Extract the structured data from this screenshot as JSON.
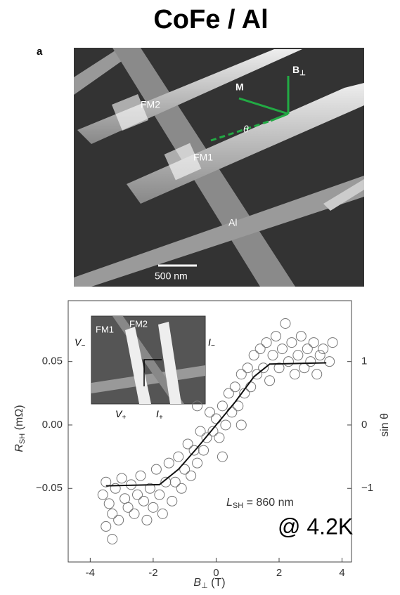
{
  "title": "CoFe / Al",
  "panel_label": "a",
  "image": {
    "labels": {
      "fm2": "FM2",
      "m": "M",
      "b_symbol": "B",
      "b_sub": "⊥",
      "theta": "θ",
      "fm1": "FM1",
      "al": "Al",
      "scale": "500 nm"
    }
  },
  "chart_data": {
    "type": "scatter",
    "x_label": {
      "symbol": "B",
      "sub": "⊥",
      "unit": " (T)"
    },
    "y_label": {
      "symbol": "R",
      "sub": "SH",
      "unit": " (mΩ)"
    },
    "y2_label": "sin θ",
    "xlim": [
      -4.7,
      4.3
    ],
    "xticks": [
      -4,
      -2,
      0,
      2,
      4
    ],
    "ylim": [
      -0.108,
      0.098
    ],
    "yticks": [
      {
        "value": -0.05,
        "label": "−0.05"
      },
      {
        "value": 0,
        "label": "0.00"
      },
      0.05
    ],
    "y2lim": [
      -2.16,
      1.96
    ],
    "y2ticks": [
      {
        "value": -1,
        "label": "−1"
      },
      0,
      1
    ],
    "annotations": {
      "l_symbol": "L",
      "l_sub": "SH",
      "l_text": " = 860 nm",
      "temp": "@ 4.2K"
    },
    "inset_labels": {
      "v_minus": "V",
      "v_minus_sub": "−",
      "fm1": "FM1",
      "fm2": "FM2",
      "i_minus": "I",
      "i_minus_sub": "−",
      "v_plus": "V",
      "v_plus_sub": "+",
      "i_plus": "I",
      "i_plus_sub": "+"
    },
    "series": [
      {
        "style": "markers",
        "color": "#777777",
        "x": [
          -3.6,
          -3.5,
          -3.4,
          -3.3,
          -3.5,
          -3.3,
          -3.2,
          -3.1,
          -3.0,
          -2.9,
          -2.8,
          -2.7,
          -2.6,
          -2.5,
          -2.4,
          -2.3,
          -2.2,
          -2.1,
          -2.0,
          -1.9,
          -1.8,
          -1.7,
          -1.6,
          -1.5,
          -1.4,
          -1.3,
          -1.2,
          -1.1,
          -1.0,
          -0.9,
          -0.8,
          -0.7,
          -0.6,
          -0.5,
          -0.4,
          -0.3,
          -0.2,
          -0.1,
          0,
          0.1,
          0.2,
          0.3,
          0.4,
          0.5,
          0.6,
          0.7,
          0.8,
          0.9,
          1.0,
          1.1,
          1.2,
          1.3,
          1.4,
          1.5,
          1.6,
          1.7,
          1.8,
          1.9,
          2.0,
          2.1,
          2.2,
          2.3,
          2.4,
          2.5,
          2.6,
          2.7,
          2.8,
          2.9,
          3.0,
          3.1,
          3.2,
          3.3,
          3.4,
          3.6,
          3.7,
          -0.6,
          0.2,
          0.8
        ],
        "values": [
          -0.055,
          -0.045,
          -0.062,
          -0.07,
          -0.08,
          -0.09,
          -0.05,
          -0.075,
          -0.042,
          -0.058,
          -0.065,
          -0.047,
          -0.07,
          -0.055,
          -0.04,
          -0.06,
          -0.075,
          -0.05,
          -0.065,
          -0.035,
          -0.055,
          -0.07,
          -0.045,
          -0.03,
          -0.06,
          -0.045,
          -0.025,
          -0.05,
          -0.035,
          -0.015,
          -0.04,
          -0.02,
          -0.03,
          -0.005,
          -0.02,
          -0.01,
          0.01,
          -0.005,
          0.005,
          -0.01,
          0.015,
          0,
          0.025,
          0.01,
          0.03,
          0.015,
          0.04,
          0.025,
          0.045,
          0.03,
          0.055,
          0.04,
          0.06,
          0.045,
          0.065,
          0.035,
          0.055,
          0.07,
          0.045,
          0.06,
          0.08,
          0.05,
          0.065,
          0.04,
          0.055,
          0.07,
          0.045,
          0.06,
          0.05,
          0.065,
          0.04,
          0.055,
          0.06,
          0.05,
          0.065,
          0.015,
          -0.025,
          0
        ]
      },
      {
        "style": "line",
        "color": "#111111",
        "x": [
          -3.5,
          -1.8,
          -1.2,
          -0.6,
          0,
          0.6,
          1.2,
          1.7,
          3.5
        ],
        "values": [
          -0.048,
          -0.047,
          -0.035,
          -0.018,
          0,
          0.018,
          0.038,
          0.048,
          0.049
        ]
      }
    ]
  }
}
